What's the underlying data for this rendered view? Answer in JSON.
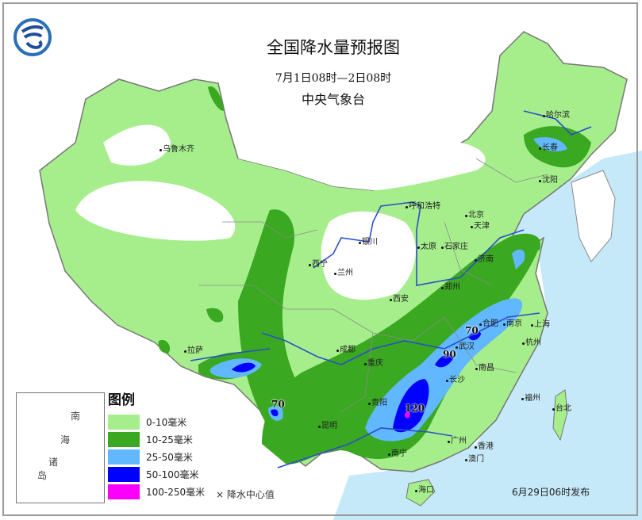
{
  "title": "全国降水量预报图",
  "subtitle": "7月1日08时—2日08时",
  "organization": "中央气象台",
  "logo_icon": "cma-logo",
  "issued": "6月29日06时发布",
  "legend": {
    "title": "图例",
    "items": [
      {
        "label": "0-10毫米",
        "color": "#a6ee8c"
      },
      {
        "label": "10-25毫米",
        "color": "#3aa821"
      },
      {
        "label": "25-50毫米",
        "color": "#61b8ff"
      },
      {
        "label": "50-100毫米",
        "color": "#0000fe"
      },
      {
        "label": "100-250毫米",
        "color": "#fa00fa"
      }
    ],
    "center_marker": "×",
    "center_label": "降水中心值"
  },
  "inset": {
    "labels": [
      "南",
      "海",
      "诸",
      "岛"
    ]
  },
  "cities": [
    "乌鲁木齐",
    "哈尔滨",
    "长春",
    "沈阳",
    "呼和浩特",
    "北京",
    "天津",
    "银川",
    "太原",
    "石家庄",
    "济南",
    "西宁",
    "兰州",
    "郑州",
    "西安",
    "合肥",
    "南京",
    "上海",
    "武汉",
    "杭州",
    "成都",
    "重庆",
    "长沙",
    "南昌",
    "拉萨",
    "贵阳",
    "福州",
    "台北",
    "昆明",
    "南宁",
    "广州",
    "香港",
    "澳门",
    "海口"
  ],
  "precip_centers": [
    "70",
    "90",
    "70",
    "120"
  ],
  "colors": {
    "ocean": "#c6e9f9",
    "land_outside": "#ffffff",
    "river": "#2a4fc8",
    "border": "#777777"
  }
}
